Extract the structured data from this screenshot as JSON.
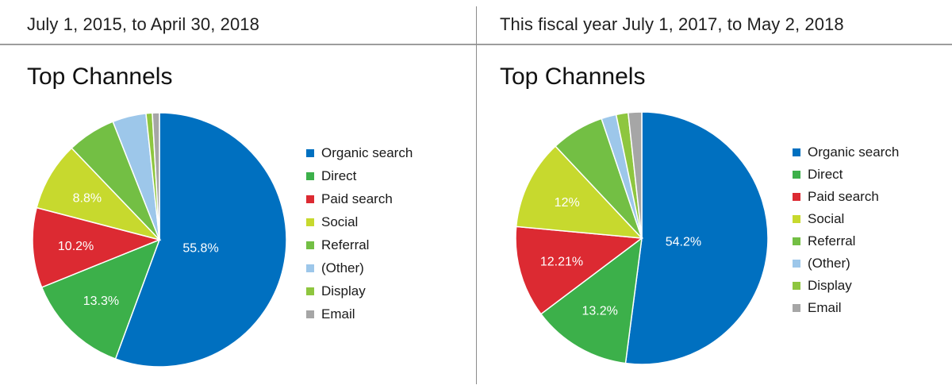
{
  "panels": [
    {
      "range_label": "July 1, 2015, to April 30, 2018",
      "title": "Top Channels"
    },
    {
      "range_label": "This fiscal year July 1, 2017, to May 2, 2018",
      "title": "Top Channels"
    }
  ],
  "legend": [
    "Organic search",
    "Direct",
    "Paid search",
    "Social",
    "Referral",
    "(Other)",
    "Display",
    "Email"
  ],
  "colors": [
    "#0070c0",
    "#3cb04a",
    "#dc2a32",
    "#c7d92e",
    "#73bf44",
    "#9dc7ea",
    "#8ec63f",
    "#a6a6a6"
  ],
  "chart_data": [
    {
      "type": "pie",
      "title": "Top Channels",
      "labels": [
        "Organic search",
        "Direct",
        "Paid search",
        "Social",
        "Referral",
        "(Other)",
        "Display",
        "Email"
      ],
      "values": [
        55.8,
        13.3,
        10.2,
        8.8,
        6.2,
        4.3,
        0.8,
        0.9
      ],
      "data_labels": [
        "55.8%",
        "13.3%",
        "10.2%",
        "8.8%",
        "",
        "",
        "",
        ""
      ],
      "legend": "right"
    },
    {
      "type": "pie",
      "title": "Top Channels",
      "labels": [
        "Organic search",
        "Direct",
        "Paid search",
        "Social",
        "Referral",
        "(Other)",
        "Display",
        "Email"
      ],
      "values": [
        54.2,
        13.2,
        12.21,
        12,
        7.1,
        2,
        1.6,
        1.8
      ],
      "data_labels": [
        "54.2%",
        "13.2%",
        "12.21%",
        "12%",
        "",
        "",
        "",
        ""
      ],
      "legend": "right"
    }
  ]
}
